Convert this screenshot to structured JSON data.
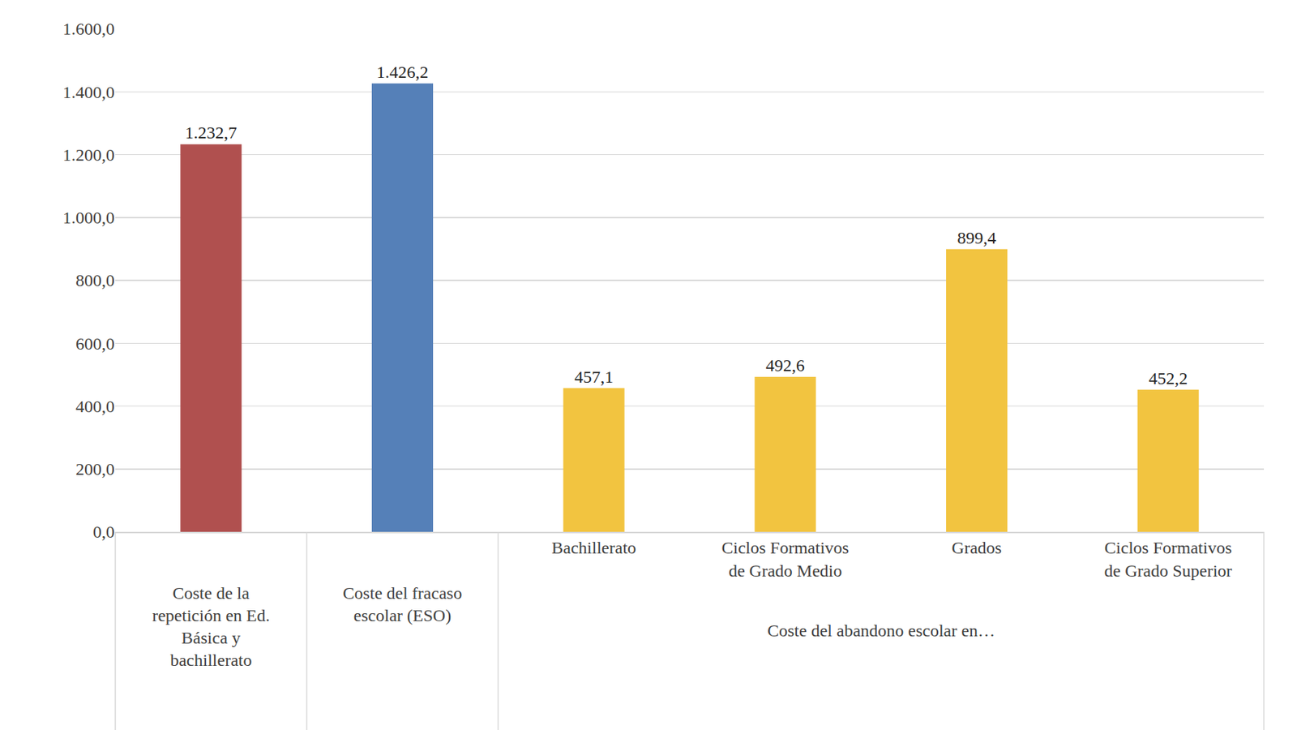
{
  "chart_data": {
    "type": "bar",
    "categories": [
      "Coste de la repetición en Ed. Básica y bachillerato",
      "Coste del fracaso escolar (ESO)",
      "Bachillerato",
      "Ciclos Formativos de Grado Medio",
      "Grados",
      "Ciclos Formativos de Grado Superior"
    ],
    "groups": [
      {
        "label": "Coste del abandono escolar en…",
        "categories": [
          "Bachillerato",
          "Ciclos Formativos de Grado Medio",
          "Grados",
          "Ciclos Formativos de Grado Superior"
        ]
      }
    ],
    "values": [
      1232.7,
      1426.2,
      457.1,
      492.6,
      899.4,
      452.2
    ],
    "value_labels": [
      "1.232,7",
      "1.426,2",
      "457,1",
      "492,6",
      "899,4",
      "452,2"
    ],
    "colors": [
      "#b0504f",
      "#5580b8",
      "#f2c440",
      "#f2c440",
      "#f2c440",
      "#f2c440"
    ],
    "ylim": [
      0,
      1600
    ],
    "yticks": [
      {
        "value": 0,
        "label": "0,0"
      },
      {
        "value": 200,
        "label": "200,0"
      },
      {
        "value": 400,
        "label": "400,0"
      },
      {
        "value": 600,
        "label": "600,0"
      },
      {
        "value": 800,
        "label": "800,0"
      },
      {
        "value": 1000,
        "label": "1.000,0"
      },
      {
        "value": 1200,
        "label": "1.200,0"
      },
      {
        "value": 1400,
        "label": "1.400,0"
      },
      {
        "value": 1600,
        "label": "1.600,0"
      }
    ],
    "grid": true,
    "data_labels": true
  }
}
